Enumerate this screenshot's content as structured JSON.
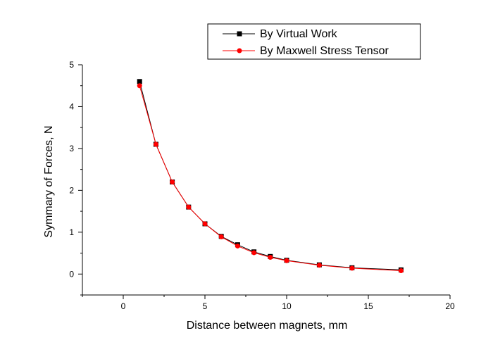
{
  "chart_data": {
    "type": "line",
    "title": "",
    "xlabel": "Distance between magnets, mm",
    "ylabel": "Symmary of Forces, N",
    "xlim": [
      -2.5,
      20
    ],
    "ylim": [
      -0.5,
      5
    ],
    "xticks": [
      0,
      5,
      10,
      15,
      20
    ],
    "yticks": [
      0,
      1,
      2,
      3,
      4,
      5
    ],
    "grid": false,
    "legend_position": "top-right",
    "series": [
      {
        "name": "By Virtual Work",
        "color": "#000000",
        "marker": "square",
        "x": [
          1,
          2,
          3,
          4,
          5,
          6,
          7,
          8,
          9,
          10,
          12,
          14,
          17
        ],
        "y": [
          4.6,
          3.1,
          2.2,
          1.6,
          1.2,
          0.9,
          0.7,
          0.53,
          0.42,
          0.33,
          0.22,
          0.15,
          0.1
        ]
      },
      {
        "name": "By Maxwell Stress Tensor",
        "color": "#ff0000",
        "marker": "circle",
        "x": [
          1,
          2,
          3,
          4,
          5,
          6,
          7,
          8,
          9,
          10,
          12,
          14,
          17
        ],
        "y": [
          4.5,
          3.1,
          2.2,
          1.6,
          1.2,
          0.89,
          0.67,
          0.51,
          0.4,
          0.32,
          0.21,
          0.14,
          0.08
        ]
      }
    ]
  }
}
